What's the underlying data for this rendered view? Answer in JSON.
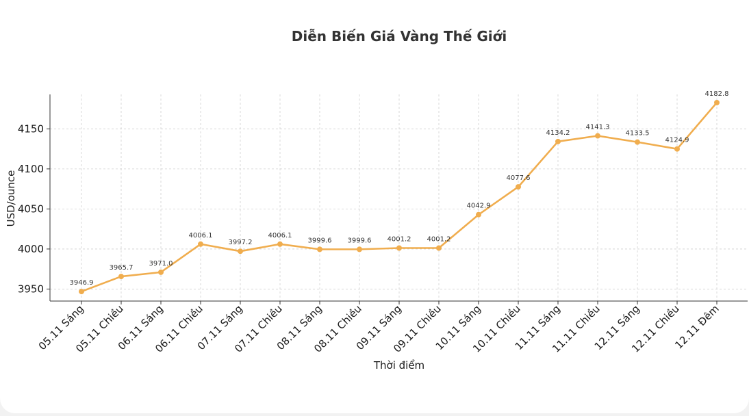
{
  "chart_data": {
    "type": "line",
    "title": "Diễn Biến Giá Vàng Thế Giới",
    "xlabel": "Thời điểm",
    "ylabel": "USD/ounce",
    "categories": [
      "05.11 Sáng",
      "05.11 Chiều",
      "06.11 Sáng",
      "06.11 Chiều",
      "07.11 Sáng",
      "07.11 Chiều",
      "08.11 Sáng",
      "08.11 Chiều",
      "09.11 Sáng",
      "09.11 Chiều",
      "10.11 Sáng",
      "10.11 Chiều",
      "11.11 Sáng",
      "11.11 Chiều",
      "12.11 Sáng",
      "12.11 Chiều",
      "12.11 Đêm"
    ],
    "values": [
      3946.9,
      3965.7,
      3971.0,
      4006.1,
      3997.2,
      4006.1,
      3999.6,
      3999.6,
      4001.2,
      4001.2,
      4042.9,
      4077.6,
      4134.2,
      4141.3,
      4133.5,
      4124.9,
      4182.8
    ],
    "value_labels": [
      "3946.9",
      "3965.7",
      "3971.0",
      "4006.1",
      "3997.2",
      "4006.1",
      "3999.6",
      "3999.6",
      "4001.2",
      "4001.2",
      "4042.9",
      "4077.6",
      "4134.2",
      "4141.3",
      "4133.5",
      "4124.9",
      "4182.8"
    ],
    "yticks": [
      3950,
      4000,
      4050,
      4100,
      4150
    ],
    "ylim": [
      3935,
      4193
    ],
    "grid": true,
    "line_color": "#F0AD4E"
  }
}
